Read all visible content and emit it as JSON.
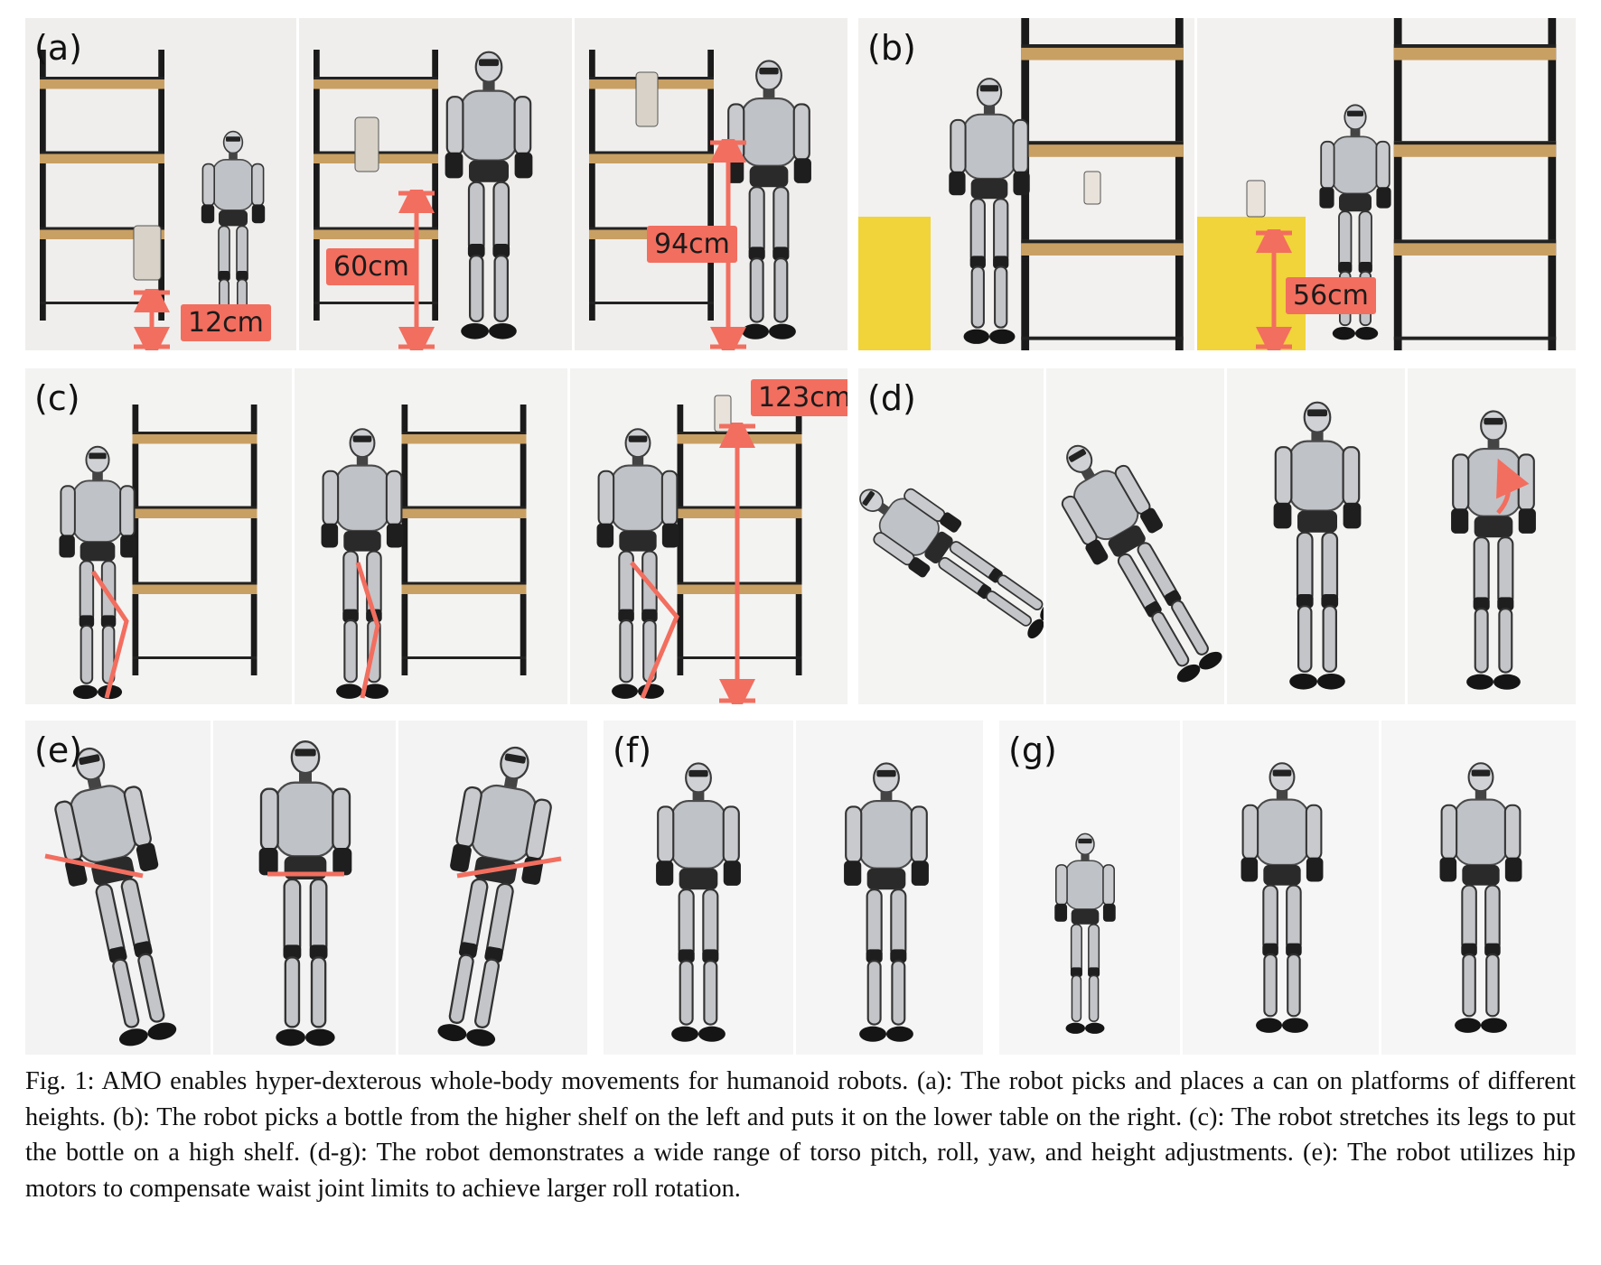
{
  "panels": {
    "a": {
      "label": "(a)",
      "measurements": [
        "12cm",
        "60cm",
        "94cm"
      ]
    },
    "b": {
      "label": "(b)",
      "measurements": [
        "56cm"
      ]
    },
    "c": {
      "label": "(c)",
      "measurements": [
        "123cm"
      ]
    },
    "d": {
      "label": "(d)"
    },
    "e": {
      "label": "(e)"
    },
    "f": {
      "label": "(f)"
    },
    "g": {
      "label": "(g)"
    }
  },
  "caption": "Fig. 1: AMO enables hyper-dexterous whole-body movements for humanoid robots. (a): The robot picks and places a can on platforms of different heights. (b): The robot picks a bottle from the higher shelf on the left and puts it on the lower table on the right. (c): The robot stretches its legs to put the bottle on a high shelf. (d-g): The robot demonstrates a wide range of torso pitch, roll, yaw, and height adjustments. (e): The robot utilizes hip motors to compensate waist joint limits to achieve larger roll rotation.",
  "colors": {
    "annotation": "#f26e5f",
    "shelf_frame": "#1a1a1a",
    "shelf_board": "#c9a063",
    "robot_body": "#b9bcc0",
    "table_cloth": "#f0d43a"
  }
}
